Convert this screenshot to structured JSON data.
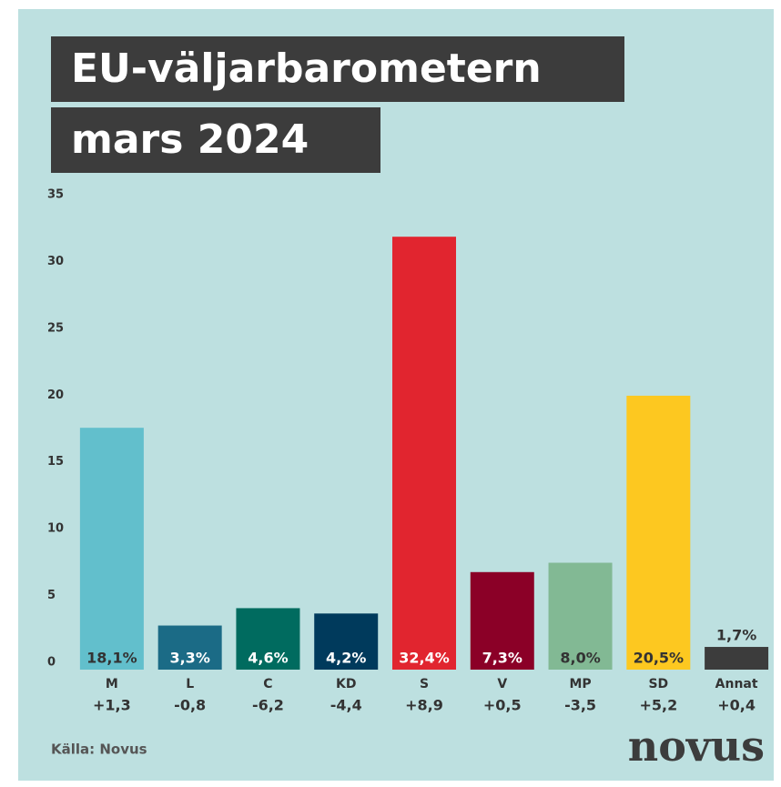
{
  "chart_data": {
    "type": "bar",
    "title": "EU-väljarbarometern",
    "subtitle": "mars 2024",
    "categories": [
      "M",
      "L",
      "C",
      "KD",
      "S",
      "V",
      "MP",
      "SD",
      "Annat"
    ],
    "changes": [
      "+1,3",
      "-0,8",
      "-6,2",
      "-4,4",
      "+8,9",
      "+0,5",
      "-3,5",
      "+5,2",
      "+0,4"
    ],
    "values": [
      18.1,
      3.3,
      4.6,
      4.2,
      32.4,
      7.3,
      8.0,
      20.5,
      1.7
    ],
    "value_labels": [
      "18,1%",
      "3,3%",
      "4,6%",
      "4,2%",
      "32,4%",
      "7,3%",
      "8,0%",
      "20,5%",
      "1,7%"
    ],
    "colors": [
      "#62bfcc",
      "#1b6b86",
      "#006b5f",
      "#003a5c",
      "#e1252f",
      "#8b0027",
      "#82b994",
      "#fdc820",
      "#3c3c3c"
    ],
    "ylim": [
      0,
      35
    ],
    "yticks": [
      0,
      5,
      10,
      15,
      20,
      25,
      30,
      35
    ],
    "grid": false,
    "source": "Källa: Novus",
    "brand": "novus"
  }
}
